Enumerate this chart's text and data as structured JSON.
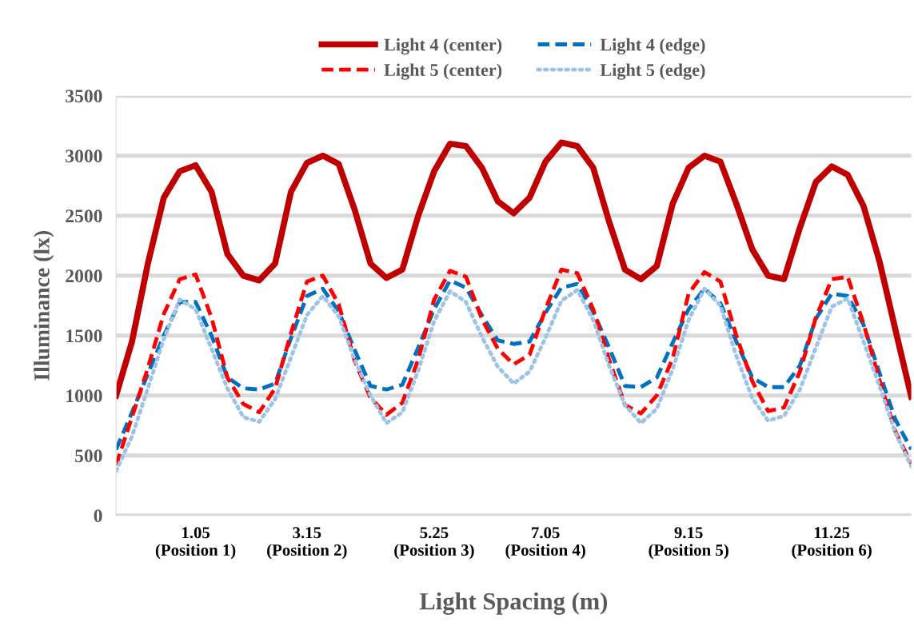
{
  "chart_data": {
    "type": "line",
    "xlabel": "Light Spacing (m)",
    "ylabel": "Illuminance (lx)",
    "categories": [
      null,
      null,
      null,
      null,
      null,
      "1.05\n(Position 1)",
      null,
      null,
      null,
      null,
      null,
      null,
      "3.15\n(Position 2)",
      null,
      null,
      null,
      null,
      null,
      null,
      null,
      "5.25\n(Position 3)",
      null,
      null,
      null,
      null,
      null,
      null,
      "7.05\n(Position 4)",
      null,
      null,
      null,
      null,
      null,
      null,
      null,
      null,
      "9.15\n(Position 5)",
      null,
      null,
      null,
      null,
      null,
      null,
      null,
      null,
      "11.25\n(Position 6)",
      null,
      null,
      null,
      null,
      null
    ],
    "series": [
      {
        "name": "Light 4 (center)",
        "color": "#c00000",
        "line_style": "solid",
        "values": [
          1000,
          1450,
          2100,
          2650,
          2870,
          2920,
          2700,
          2180,
          2000,
          1960,
          2100,
          2700,
          2940,
          3000,
          2930,
          2550,
          2100,
          1980,
          2050,
          2500,
          2870,
          3100,
          3080,
          2900,
          2620,
          2520,
          2650,
          2950,
          3110,
          3080,
          2900,
          2450,
          2050,
          1970,
          2080,
          2600,
          2900,
          3000,
          2950,
          2600,
          2220,
          2000,
          1970,
          2400,
          2780,
          2910,
          2840,
          2580,
          2120,
          1550,
          990
        ]
      },
      {
        "name": "Light 4 (edge)",
        "color": "#0070c0",
        "line_style": "dashed",
        "values": [
          550,
          860,
          1180,
          1500,
          1780,
          1780,
          1500,
          1150,
          1060,
          1050,
          1100,
          1480,
          1830,
          1890,
          1700,
          1380,
          1080,
          1050,
          1090,
          1400,
          1720,
          1960,
          1900,
          1670,
          1460,
          1430,
          1450,
          1690,
          1900,
          1930,
          1700,
          1400,
          1080,
          1070,
          1150,
          1440,
          1720,
          1890,
          1770,
          1450,
          1150,
          1070,
          1070,
          1250,
          1640,
          1850,
          1830,
          1590,
          1190,
          800,
          550
        ]
      },
      {
        "name": "Light 5 (center)",
        "color": "#ff0000",
        "line_style": "dashed",
        "values": [
          420,
          820,
          1230,
          1680,
          1970,
          2010,
          1650,
          1150,
          930,
          860,
          1060,
          1520,
          1950,
          2000,
          1760,
          1290,
          980,
          840,
          940,
          1300,
          1800,
          2040,
          1990,
          1640,
          1390,
          1260,
          1340,
          1720,
          2050,
          2020,
          1720,
          1300,
          920,
          850,
          1000,
          1310,
          1850,
          2030,
          1950,
          1500,
          1120,
          870,
          900,
          1200,
          1650,
          1970,
          1990,
          1600,
          1130,
          700,
          430
        ]
      },
      {
        "name": "Light 5 (edge)",
        "color": "#9dc3e6",
        "line_style": "dotted",
        "values": [
          370,
          660,
          1060,
          1470,
          1800,
          1720,
          1390,
          1060,
          820,
          780,
          970,
          1320,
          1670,
          1830,
          1660,
          1300,
          1000,
          770,
          860,
          1210,
          1620,
          1870,
          1780,
          1490,
          1240,
          1100,
          1200,
          1480,
          1790,
          1880,
          1630,
          1250,
          920,
          770,
          890,
          1220,
          1630,
          1890,
          1750,
          1330,
          980,
          790,
          830,
          1050,
          1400,
          1740,
          1810,
          1450,
          1080,
          690,
          410
        ]
      }
    ],
    "ylim": [
      0,
      3500
    ],
    "yticks": [
      0,
      500,
      1000,
      1500,
      2000,
      2500,
      3000,
      3500
    ],
    "grid": "y",
    "legend": "top",
    "marker": "none"
  }
}
